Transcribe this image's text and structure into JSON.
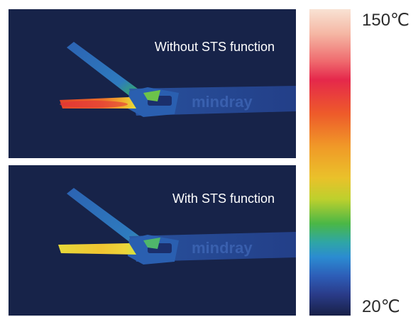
{
  "panels": {
    "top": {
      "caption": "Without STS function"
    },
    "bottom": {
      "caption": "With STS function"
    }
  },
  "scale": {
    "max_label": "150℃",
    "min_label": "20℃"
  },
  "colors": {
    "panel_bg": "#172349",
    "scale_top": "#f8e2d3",
    "scale_bottom": "#182047"
  }
}
